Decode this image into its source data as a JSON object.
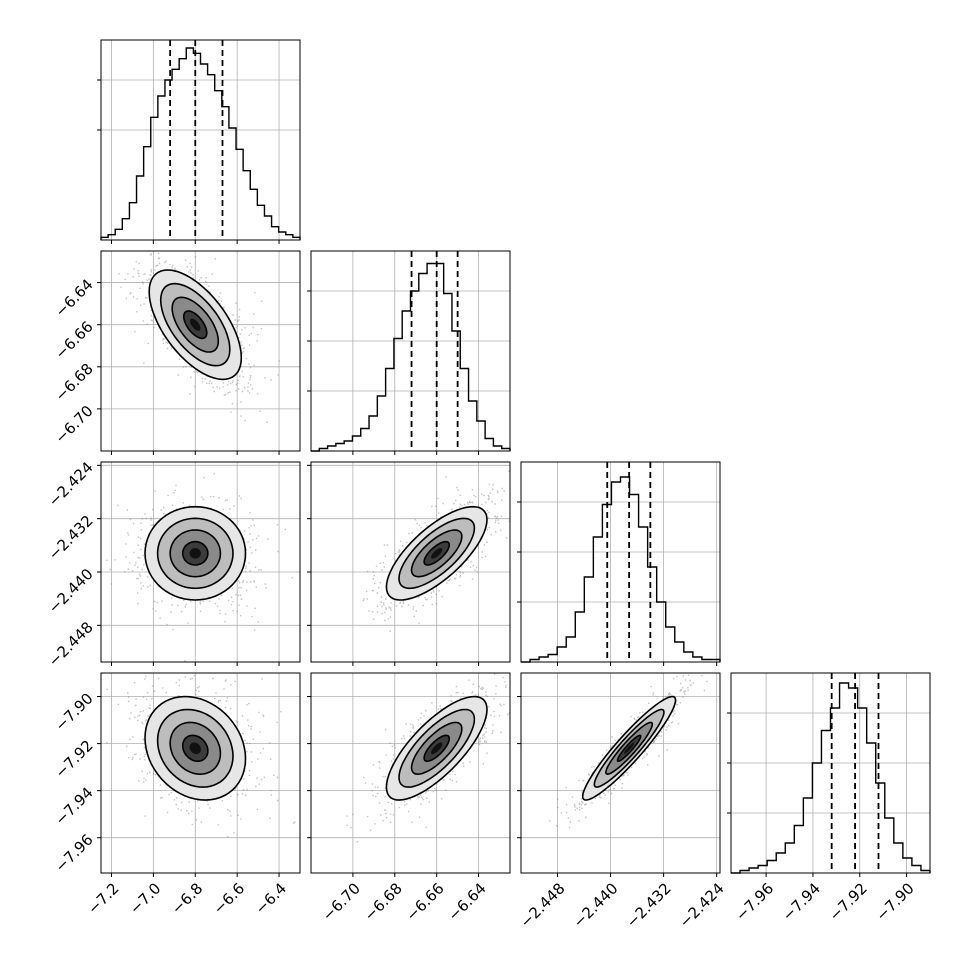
{
  "chart_data": {
    "type": "corner",
    "parameters": [
      {
        "range": [
          -7.25,
          -6.3
        ],
        "ticks": [
          -7.2,
          -7.0,
          -6.8,
          -6.6,
          -6.4
        ],
        "tick_labels": [
          "−7.2",
          "−7.0",
          "−6.8",
          "−6.6",
          "−6.4"
        ],
        "median": -6.8,
        "quantiles": [
          -6.92,
          -6.8,
          -6.67
        ],
        "hist": [
          1,
          2,
          4,
          8,
          14,
          24,
          35,
          46,
          54,
          60,
          64,
          68,
          72,
          70,
          66,
          62,
          56,
          50,
          42,
          34,
          26,
          19,
          13,
          9,
          5,
          3,
          2,
          1
        ],
        "hist_max": 75
      },
      {
        "range": [
          -6.72,
          -6.625
        ],
        "ticks": [
          -6.7,
          -6.68,
          -6.66,
          -6.64
        ],
        "tick_labels": [
          "−6.70",
          "−6.68",
          "−6.66",
          "−6.64"
        ],
        "median": -6.66,
        "quantiles": [
          -6.672,
          -6.66,
          -6.65
        ],
        "hist": [
          0,
          1,
          2,
          3,
          4,
          6,
          9,
          14,
          22,
          33,
          45,
          56,
          64,
          71,
          75,
          75,
          63,
          48,
          33,
          20,
          12,
          5,
          2,
          1
        ],
        "hist_max": 80
      },
      {
        "range": [
          -2.4535,
          -2.4235
        ],
        "ticks": [
          -2.448,
          -2.44,
          -2.432
        ],
        "tick_labels": [
          "−2.448",
          "−2.440",
          "−2.432"
        ],
        "x_ticks": [
          -2.448,
          -2.44,
          -2.432,
          -2.424
        ],
        "x_tick_labels": [
          "−2.448",
          "−2.440",
          "−2.432",
          "−2.424"
        ],
        "y_ticks": [
          -2.424,
          -2.432,
          -2.44,
          -2.448
        ],
        "y_tick_labels": [
          "−2.424",
          "−2.432",
          "−2.440",
          "−2.448"
        ],
        "median": -2.4372,
        "quantiles": [
          -2.4405,
          -2.4372,
          -2.434
        ],
        "hist": [
          0,
          1,
          2,
          3,
          6,
          10,
          20,
          34,
          50,
          63,
          72,
          74,
          67,
          54,
          38,
          24,
          14,
          8,
          4,
          2,
          1,
          1
        ],
        "hist_max": 80
      },
      {
        "range": [
          -7.975,
          -7.89
        ],
        "ticks": [
          -7.96,
          -7.94,
          -7.92,
          -7.9
        ],
        "tick_labels": [
          "−7.96",
          "−7.94",
          "−7.92",
          "−7.90"
        ],
        "median": -7.922,
        "quantiles": [
          -7.932,
          -7.922,
          -7.912
        ],
        "hist": [
          0,
          1,
          2,
          3,
          5,
          8,
          12,
          19,
          30,
          44,
          57,
          66,
          76,
          74,
          66,
          52,
          36,
          22,
          12,
          6,
          3,
          1
        ],
        "hist_max": 80
      }
    ],
    "pairs": [
      {
        "x": 0,
        "y": 1,
        "mean": [
          -6.8,
          -6.66
        ],
        "sd": [
          0.11,
          0.013
        ],
        "rho": -0.6
      },
      {
        "x": 0,
        "y": 2,
        "mean": [
          -6.8,
          -2.4372
        ],
        "sd": [
          0.12,
          0.0035
        ],
        "rho": 0.0
      },
      {
        "x": 1,
        "y": 2,
        "mean": [
          -6.66,
          -2.4372
        ],
        "sd": [
          0.012,
          0.0035
        ],
        "rho": 0.72
      },
      {
        "x": 0,
        "y": 3,
        "mean": [
          -6.8,
          -7.922
        ],
        "sd": [
          0.12,
          0.011
        ],
        "rho": -0.2
      },
      {
        "x": 1,
        "y": 3,
        "mean": [
          -6.66,
          -7.922
        ],
        "sd": [
          0.012,
          0.011
        ],
        "rho": 0.75
      },
      {
        "x": 2,
        "y": 3,
        "mean": [
          -2.4372,
          -7.922
        ],
        "sd": [
          0.0035,
          0.011
        ],
        "rho": 0.93
      }
    ],
    "contour_levels_sigma": [
      0.5,
      1.0,
      1.5,
      2.0
    ],
    "grid": true,
    "colors": {
      "line": "#000000",
      "grid": "#b0b0b0",
      "points": "#000000",
      "background": "#ffffff"
    },
    "xlabel": "",
    "ylabel": "",
    "title": ""
  }
}
